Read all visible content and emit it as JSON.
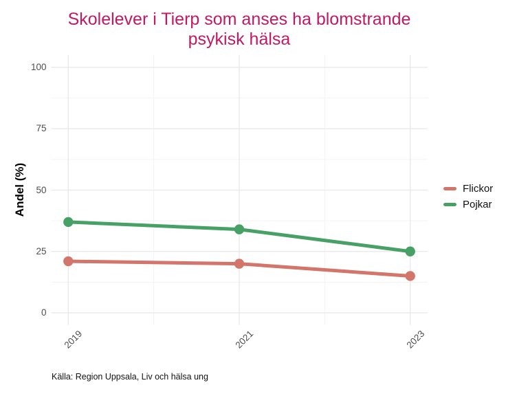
{
  "title": {
    "line1": "Skolelever i Tierp som anses ha blomstrande",
    "line2": "psykisk hälsa",
    "color": "#c11a63"
  },
  "chart_data": {
    "type": "line",
    "title": "Skolelever i Tierp som anses ha blomstrande psykisk hälsa",
    "x": [
      2019,
      2021,
      2023
    ],
    "series": [
      {
        "name": "Flickor",
        "values": [
          21,
          20,
          15
        ],
        "color": "#d3756a"
      },
      {
        "name": "Pojkar",
        "values": [
          37,
          34,
          25
        ],
        "color": "#47a166"
      }
    ],
    "xlabel": "",
    "ylabel": "Andel (%)",
    "ylim": [
      0,
      100
    ],
    "yticks": [
      0,
      25,
      50,
      75,
      100
    ],
    "xticks": [
      2019,
      2021,
      2023
    ],
    "grid": "major+minor",
    "legend_position": "right"
  },
  "caption": "Källa: Region Uppsala, Liv och hälsa ung"
}
